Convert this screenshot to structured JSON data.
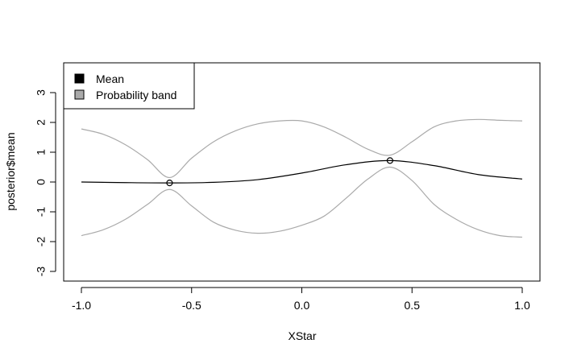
{
  "chart_data": {
    "type": "line",
    "title": "",
    "xlabel": "XStar",
    "ylabel": "posterior$mean",
    "xlim": [
      -1.0,
      1.0
    ],
    "ylim": [
      -3.0,
      3.0
    ],
    "xticks": [
      "-1.0",
      "-0.5",
      "0.0",
      "0.5",
      "1.0"
    ],
    "yticks": [
      "-3",
      "-2",
      "-1",
      "0",
      "1",
      "2",
      "3"
    ],
    "grid": false,
    "legend_position": "top-left",
    "legend": [
      {
        "label": "Mean",
        "color": "#000000"
      },
      {
        "label": "Probability band",
        "color": "#aaaaaa"
      }
    ],
    "series": [
      {
        "name": "Mean",
        "color": "#000000",
        "x": [
          -1.0,
          -0.8,
          -0.6,
          -0.4,
          -0.2,
          0.0,
          0.2,
          0.4,
          0.6,
          0.8,
          1.0
        ],
        "y": [
          0.0,
          -0.02,
          -0.03,
          -0.01,
          0.08,
          0.3,
          0.58,
          0.72,
          0.55,
          0.25,
          0.1
        ]
      },
      {
        "name": "Probability band",
        "color": "#aaaaaa",
        "x": [
          -1.0,
          -0.9,
          -0.8,
          -0.7,
          -0.6,
          -0.5,
          -0.4,
          -0.3,
          -0.2,
          -0.1,
          0.0,
          0.1,
          0.2,
          0.3,
          0.4,
          0.5,
          0.6,
          0.7,
          0.8,
          0.9,
          1.0
        ],
        "y": [
          1.78,
          1.6,
          1.25,
          0.75,
          0.15,
          0.8,
          1.35,
          1.72,
          1.95,
          2.05,
          2.05,
          1.85,
          1.5,
          1.1,
          0.9,
          1.35,
          1.85,
          2.05,
          2.1,
          2.07,
          2.05
        ]
      },
      {
        "name": "Probability band",
        "color": "#aaaaaa",
        "x": [
          -1.0,
          -0.9,
          -0.8,
          -0.7,
          -0.6,
          -0.5,
          -0.4,
          -0.3,
          -0.2,
          -0.1,
          0.0,
          0.1,
          0.2,
          0.3,
          0.4,
          0.5,
          0.6,
          0.7,
          0.8,
          0.9,
          1.0
        ],
        "y": [
          -1.8,
          -1.6,
          -1.25,
          -0.75,
          -0.25,
          -0.8,
          -1.35,
          -1.62,
          -1.72,
          -1.65,
          -1.45,
          -1.15,
          -0.55,
          0.1,
          0.5,
          0.05,
          -0.75,
          -1.25,
          -1.6,
          -1.8,
          -1.85
        ]
      }
    ],
    "points": [
      {
        "x": -0.6,
        "y": -0.03
      },
      {
        "x": 0.4,
        "y": 0.72
      }
    ]
  }
}
